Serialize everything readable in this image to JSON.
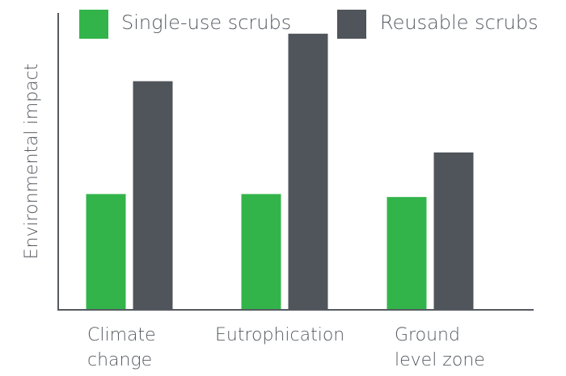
{
  "chart_data": {
    "type": "bar",
    "categories": [
      [
        "Climate",
        "change"
      ],
      [
        "Eutrophication"
      ],
      [
        "Ground",
        "level zone"
      ]
    ],
    "series": [
      {
        "name": "Single-use scrubs",
        "color": "#33b44a",
        "values": [
          0.39,
          0.39,
          0.38
        ]
      },
      {
        "name": "Reusable scrubs",
        "color": "#50545b",
        "values": [
          0.77,
          0.93,
          0.53
        ]
      }
    ],
    "title": "",
    "xlabel": "",
    "ylabel": "Environmental impact",
    "ylim": [
      0,
      1
    ],
    "grid": false,
    "legend": "top",
    "axis_color": "#555a61"
  }
}
